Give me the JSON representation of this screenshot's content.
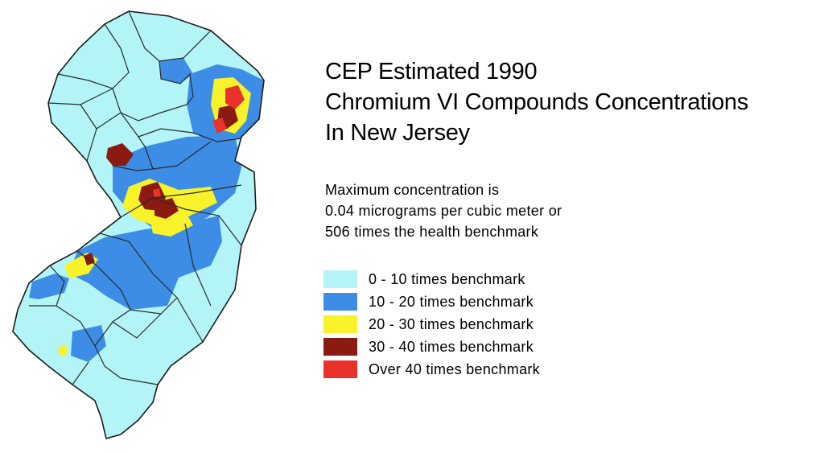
{
  "title_lines": [
    "CEP Estimated 1990",
    "Chromium VI Compounds Concentrations",
    "In New Jersey"
  ],
  "note_lines": [
    "Maximum concentration is",
    "0.04 micrograms per cubic meter or",
    "506 times the health benchmark"
  ],
  "legend": [
    {
      "label": "0 - 10 times benchmark",
      "color": "#b3f5f7"
    },
    {
      "label": "10 - 20 times benchmark",
      "color": "#3d8de6"
    },
    {
      "label": "20 - 30 times benchmark",
      "color": "#f7f22a"
    },
    {
      "label": "30 - 40 times benchmark",
      "color": "#8b1a10"
    },
    {
      "label": "Over 40 times benchmark",
      "color": "#e8322a"
    }
  ]
}
